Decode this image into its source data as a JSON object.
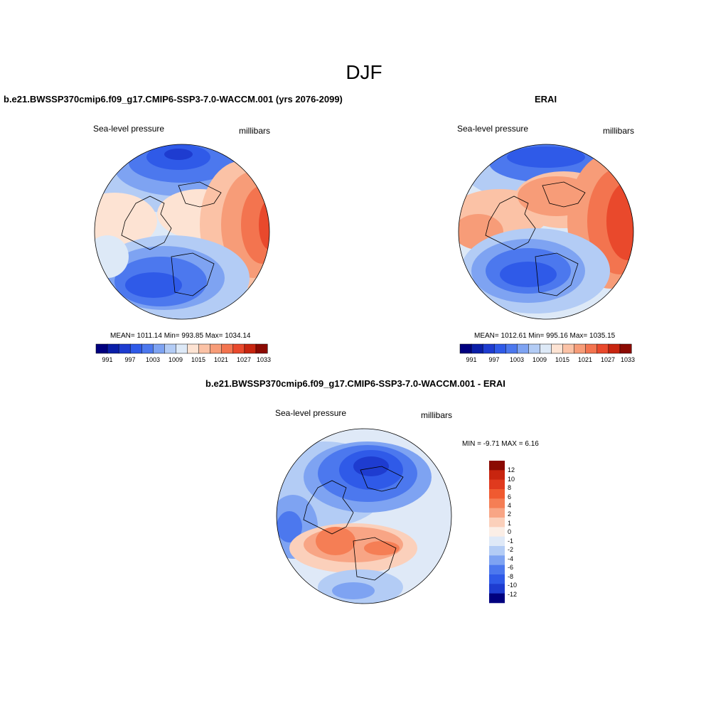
{
  "figure": {
    "season": "DJF"
  },
  "panels": {
    "model": {
      "title": "b.e21.BWSSP370cmip6.f09_g17.CMIP6-SSP3-7.0-WACCM.001 (yrs 2076-2099)",
      "left_label": "Sea-level pressure",
      "right_label": "millibars",
      "stats": "MEAN= 1011.14  Min= 993.85  Max= 1034.14",
      "colorbar_ticks": [
        "991",
        "997",
        "1003",
        "1009",
        "1015",
        "1021",
        "1027",
        "1033"
      ]
    },
    "obs": {
      "title": "ERAI",
      "left_label": "Sea-level pressure",
      "right_label": "millibars",
      "stats": "MEAN= 1012.61  Min= 995.16  Max= 1035.15",
      "colorbar_ticks": [
        "991",
        "997",
        "1003",
        "1009",
        "1015",
        "1021",
        "1027",
        "1033"
      ]
    },
    "diff": {
      "title": "b.e21.BWSSP370cmip6.f09_g17.CMIP6-SSP3-7.0-WACCM.001 - ERAI",
      "left_label": "Sea-level pressure",
      "right_label": "millibars",
      "stats": "MIN =  -9.71 MAX =   6.16",
      "colorbar_ticks": [
        "12",
        "10",
        "8",
        "6",
        "4",
        "2",
        "1",
        "0",
        "-1",
        "-2",
        "-4",
        "-6",
        "-8",
        "-10",
        "-12"
      ]
    }
  },
  "colors": {
    "abs_scale": [
      "#00007f",
      "#0a1ea8",
      "#1e3cd0",
      "#2f5ae8",
      "#4c78ee",
      "#7ea3f2",
      "#b3ccf5",
      "#dde9f7",
      "#fde3d3",
      "#fbc2a6",
      "#f79c78",
      "#f3744f",
      "#e9492c",
      "#c8250f",
      "#8b0a02"
    ],
    "diff_scale": [
      "#8b0a02",
      "#c8250f",
      "#e03a1e",
      "#f05a30",
      "#f57e55",
      "#f8a585",
      "#fbd0bb",
      "#fbeee6",
      "#dfe9f7",
      "#b3ccf5",
      "#7ea3f2",
      "#4c78ee",
      "#2f5ae8",
      "#1e3cd0",
      "#00007f"
    ]
  }
}
